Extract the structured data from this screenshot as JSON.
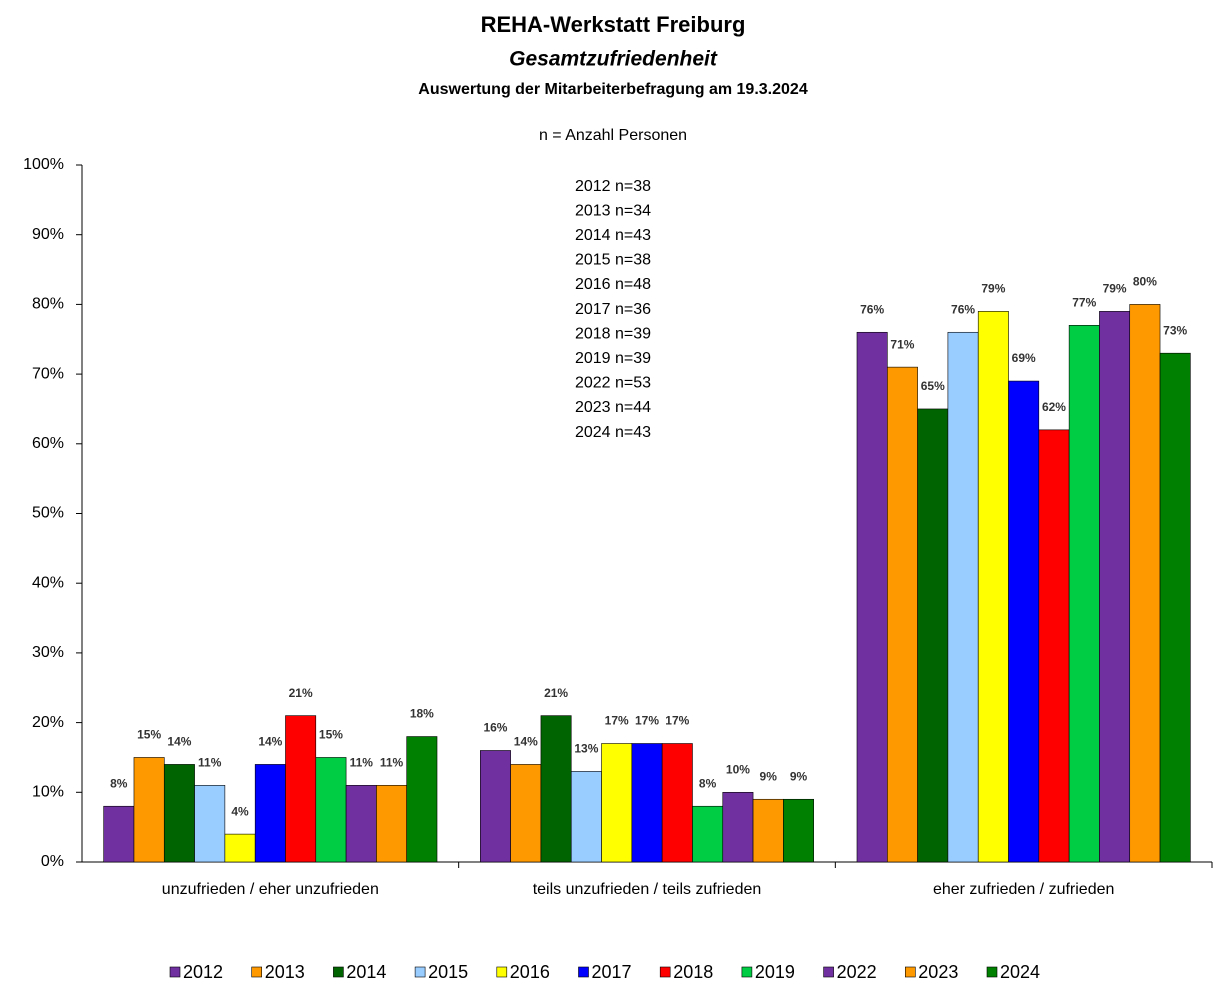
{
  "chart_data": {
    "type": "bar",
    "title": "REHA-Werkstatt Freiburg",
    "subtitle": "Gesamtzufriedenheit",
    "subtitle2": "Auswertung der Mitarbeiterbefragung am 19.3.2024",
    "annotations": [
      "n = Anzahl Personen",
      "2012 n=38",
      "2013 n=34",
      "2014 n=43",
      "2015 n=38",
      "2016 n=48",
      "2017 n=36",
      "2018 n=39",
      "2019 n=39",
      "2022 n=53",
      "2023 n=44",
      "2024 n=43"
    ],
    "categories": [
      "unzufrieden / eher unzufrieden",
      "teils unzufrieden / teils zufrieden",
      "eher zufrieden / zufrieden"
    ],
    "series": [
      {
        "name": "2012",
        "color": "#7030a0",
        "values": [
          8,
          16,
          76
        ],
        "value_labels": [
          "8%",
          "16%",
          "76%"
        ]
      },
      {
        "name": "2013",
        "color": "#ff9900",
        "values": [
          15,
          14,
          71
        ],
        "value_labels": [
          "15%",
          "14%",
          "71%"
        ]
      },
      {
        "name": "2014",
        "color": "#006400",
        "values": [
          14,
          21,
          65
        ],
        "value_labels": [
          "14%",
          "21%",
          "65%"
        ]
      },
      {
        "name": "2015",
        "color": "#99ccff",
        "values": [
          11,
          13,
          76
        ],
        "value_labels": [
          "11%",
          "13%",
          "76%"
        ]
      },
      {
        "name": "2016",
        "color": "#ffff00",
        "values": [
          4,
          17,
          79
        ],
        "value_labels": [
          "4%",
          "17%",
          "79%"
        ]
      },
      {
        "name": "2017",
        "color": "#0000ff",
        "values": [
          14,
          17,
          69
        ],
        "value_labels": [
          "14%",
          "17%",
          "69%"
        ]
      },
      {
        "name": "2018",
        "color": "#ff0000",
        "values": [
          21,
          17,
          62
        ],
        "value_labels": [
          "21%",
          "17%",
          "62%"
        ]
      },
      {
        "name": "2019",
        "color": "#00cc44",
        "values": [
          15,
          8,
          77
        ],
        "value_labels": [
          "15%",
          "8%",
          "77%"
        ]
      },
      {
        "name": "2022",
        "color": "#7030a0",
        "values": [
          11,
          10,
          79
        ],
        "value_labels": [
          "11%",
          "10%",
          "79%"
        ]
      },
      {
        "name": "2023",
        "color": "#ff9900",
        "values": [
          11,
          9,
          80
        ],
        "value_labels": [
          "11%",
          "9%",
          "80%"
        ]
      },
      {
        "name": "2024",
        "color": "#008000",
        "values": [
          18,
          9,
          73
        ],
        "value_labels": [
          "18%",
          "9%",
          "73%"
        ]
      }
    ],
    "ylim": [
      0,
      100
    ],
    "yticks": [
      {
        "value": 0,
        "label": "0%"
      },
      {
        "value": 10,
        "label": "10%"
      },
      {
        "value": 20,
        "label": "20%"
      },
      {
        "value": 30,
        "label": "30%"
      },
      {
        "value": 40,
        "label": "40%"
      },
      {
        "value": 50,
        "label": "50%"
      },
      {
        "value": 60,
        "label": "60%"
      },
      {
        "value": 70,
        "label": "70%"
      },
      {
        "value": 80,
        "label": "80%"
      },
      {
        "value": 90,
        "label": "90%"
      },
      {
        "value": 100,
        "label": "100%"
      }
    ],
    "grid": false,
    "legend": "bottom"
  }
}
